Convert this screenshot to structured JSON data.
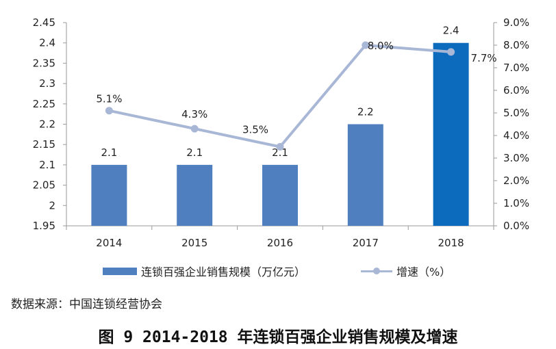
{
  "chart_data": {
    "type": "bar",
    "categories": [
      "2014",
      "2015",
      "2016",
      "2017",
      "2018"
    ],
    "series": [
      {
        "name": "连锁百强企业销售规模（万亿元）",
        "kind": "bar",
        "axis": "left",
        "values": [
          2.1,
          2.1,
          2.1,
          2.2,
          2.4
        ],
        "labels": [
          "2.1",
          "2.1",
          "2.1",
          "2.2",
          "2.4"
        ]
      },
      {
        "name": "增速（%）",
        "kind": "line",
        "axis": "right",
        "values": [
          5.1,
          4.3,
          3.5,
          8.0,
          7.7
        ],
        "labels": [
          "5.1%",
          "4.3%",
          "3.5%",
          "8.0%",
          "7.7%"
        ]
      }
    ],
    "y_left": {
      "ylim": [
        1.95,
        2.45
      ],
      "ticks": [
        "2.45",
        "2.4",
        "2.35",
        "2.3",
        "2.25",
        "2.2",
        "2.15",
        "2.1",
        "2.05",
        "2",
        "1.95"
      ]
    },
    "y_right": {
      "ylim": [
        0,
        9
      ],
      "ticks": [
        "9.0%",
        "8.0%",
        "7.0%",
        "6.0%",
        "5.0%",
        "4.0%",
        "3.0%",
        "2.0%",
        "1.0%",
        "0.0%"
      ]
    },
    "legend_position": "bottom",
    "highlight_index": 4
  },
  "colors": {
    "bar": "#4f7fbf",
    "bar_highlight": "#0d6bbd",
    "line": "#a9b7d6",
    "axis": "#9a9a9a"
  },
  "legend": {
    "bar_label": "连锁百强企业销售规模（万亿元）",
    "line_label": "增速（%）"
  },
  "source": "数据来源：中国连锁经营协会",
  "caption": "图 9 2014-2018 年连锁百强企业销售规模及增速"
}
